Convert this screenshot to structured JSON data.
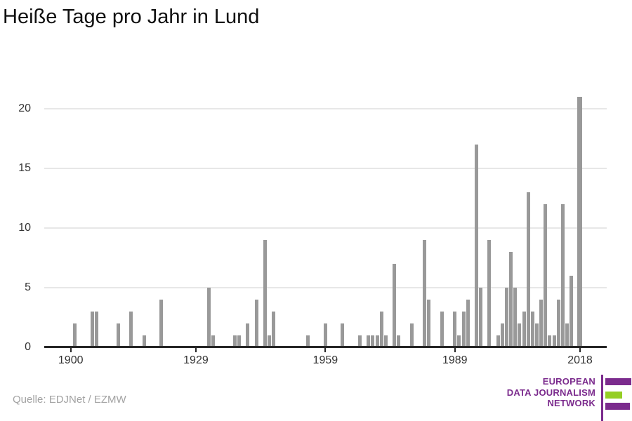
{
  "title": "Heiße Tage pro Jahr in Lund",
  "source": "Quelle: EDJNet / EZMW",
  "logo": {
    "lines": [
      "EUROPEAN",
      "DATA JOURNALISM",
      "NETWORK"
    ],
    "purple": "#7b2b8d",
    "green": "#95ce24"
  },
  "chart_data": {
    "type": "bar",
    "title": "Heiße Tage pro Jahr in Lund",
    "xlabel": "",
    "ylabel": "",
    "bar_color": "#999999",
    "grid": true,
    "legend": "none",
    "x_ticks": [
      1900,
      1929,
      1959,
      1989,
      2018
    ],
    "y_ticks": [
      0,
      5,
      10,
      15,
      20
    ],
    "xlim": [
      1894,
      2024
    ],
    "ylim": [
      0,
      21
    ],
    "points": [
      {
        "year": 1901,
        "value": 2
      },
      {
        "year": 1905,
        "value": 3
      },
      {
        "year": 1906,
        "value": 3
      },
      {
        "year": 1911,
        "value": 2
      },
      {
        "year": 1914,
        "value": 3
      },
      {
        "year": 1917,
        "value": 1
      },
      {
        "year": 1921,
        "value": 4
      },
      {
        "year": 1932,
        "value": 5
      },
      {
        "year": 1933,
        "value": 1
      },
      {
        "year": 1938,
        "value": 1
      },
      {
        "year": 1939,
        "value": 1
      },
      {
        "year": 1941,
        "value": 2
      },
      {
        "year": 1943,
        "value": 4
      },
      {
        "year": 1945,
        "value": 9
      },
      {
        "year": 1946,
        "value": 1
      },
      {
        "year": 1947,
        "value": 3
      },
      {
        "year": 1955,
        "value": 1
      },
      {
        "year": 1959,
        "value": 2
      },
      {
        "year": 1963,
        "value": 2
      },
      {
        "year": 1967,
        "value": 1
      },
      {
        "year": 1969,
        "value": 1
      },
      {
        "year": 1970,
        "value": 1
      },
      {
        "year": 1971,
        "value": 1
      },
      {
        "year": 1972,
        "value": 3
      },
      {
        "year": 1973,
        "value": 1
      },
      {
        "year": 1975,
        "value": 7
      },
      {
        "year": 1976,
        "value": 1
      },
      {
        "year": 1979,
        "value": 2
      },
      {
        "year": 1982,
        "value": 9
      },
      {
        "year": 1983,
        "value": 4
      },
      {
        "year": 1986,
        "value": 3
      },
      {
        "year": 1989,
        "value": 3
      },
      {
        "year": 1990,
        "value": 1
      },
      {
        "year": 1991,
        "value": 3
      },
      {
        "year": 1992,
        "value": 4
      },
      {
        "year": 1994,
        "value": 17
      },
      {
        "year": 1995,
        "value": 5
      },
      {
        "year": 1997,
        "value": 9
      },
      {
        "year": 1999,
        "value": 1
      },
      {
        "year": 2000,
        "value": 2
      },
      {
        "year": 2001,
        "value": 5
      },
      {
        "year": 2002,
        "value": 8
      },
      {
        "year": 2003,
        "value": 5
      },
      {
        "year": 2004,
        "value": 2
      },
      {
        "year": 2005,
        "value": 3
      },
      {
        "year": 2006,
        "value": 13
      },
      {
        "year": 2007,
        "value": 3
      },
      {
        "year": 2008,
        "value": 2
      },
      {
        "year": 2009,
        "value": 4
      },
      {
        "year": 2010,
        "value": 12
      },
      {
        "year": 2011,
        "value": 1
      },
      {
        "year": 2012,
        "value": 1
      },
      {
        "year": 2013,
        "value": 4
      },
      {
        "year": 2014,
        "value": 12
      },
      {
        "year": 2015,
        "value": 2
      },
      {
        "year": 2016,
        "value": 6
      },
      {
        "year": 2018,
        "value": 21
      }
    ]
  }
}
